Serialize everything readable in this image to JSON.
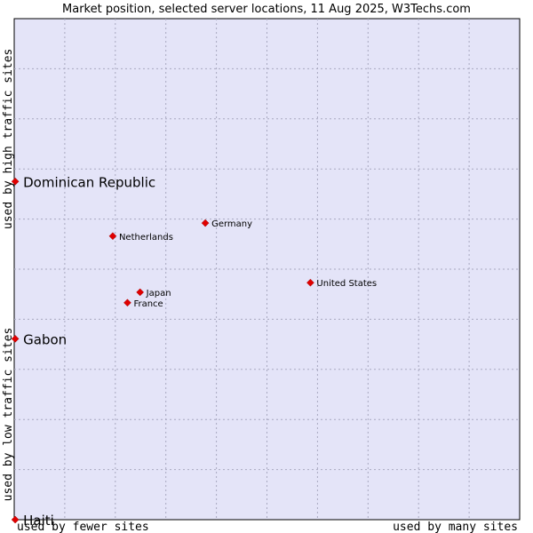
{
  "chart_data": {
    "type": "scatter",
    "title": "Market position, selected server locations, 11 Aug 2025, W3Techs.com",
    "xlabel_low": "used by fewer sites",
    "xlabel_high": "used by many sites",
    "ylabel_low": "used by low traffic sites",
    "ylabel_high": "used by high traffic sites",
    "xlim": [
      0,
      100
    ],
    "ylim": [
      0,
      100
    ],
    "grid": true,
    "colors": {
      "plot_bg": "#e4e4f8",
      "grid": "#a8a8c0",
      "marker": "#e00000",
      "border": "#000000"
    },
    "points": [
      {
        "name": "Dominican Republic",
        "x": 0.2,
        "y": 67.5,
        "size": "large"
      },
      {
        "name": "Germany",
        "x": 37.8,
        "y": 59.2,
        "size": "small"
      },
      {
        "name": "Netherlands",
        "x": 19.5,
        "y": 56.6,
        "size": "small"
      },
      {
        "name": "United States",
        "x": 58.6,
        "y": 47.3,
        "size": "small"
      },
      {
        "name": "Japan",
        "x": 24.9,
        "y": 45.4,
        "size": "small"
      },
      {
        "name": "France",
        "x": 22.4,
        "y": 43.3,
        "size": "small"
      },
      {
        "name": "Gabon",
        "x": 0.2,
        "y": 36.1,
        "size": "large"
      },
      {
        "name": "Haiti",
        "x": 0.2,
        "y": 0.0,
        "size": "large"
      }
    ]
  }
}
